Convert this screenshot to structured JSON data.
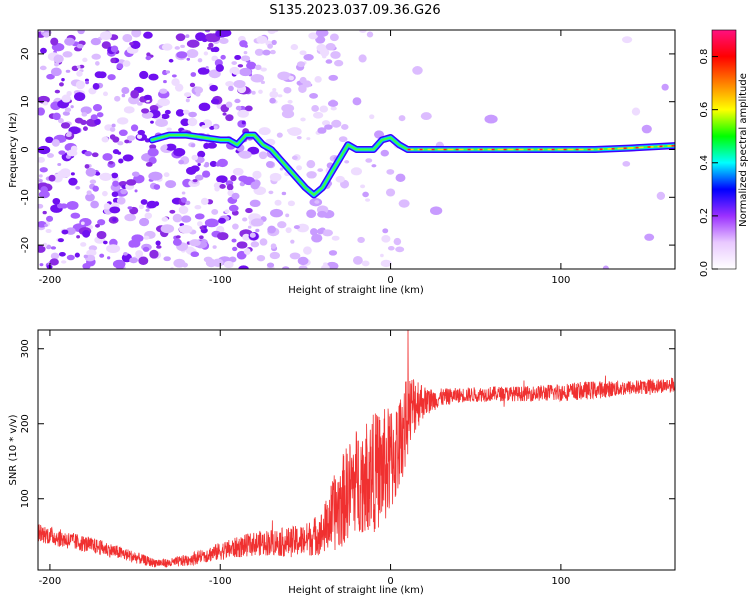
{
  "title": "S135.2023.037.09.36.G26",
  "chart_data": [
    {
      "type": "heatmap",
      "xlabel": "Height of straight line (km)",
      "ylabel": "Frequency (Hz)",
      "xlim": [
        -207,
        167
      ],
      "ylim": [
        -25,
        25
      ],
      "xticks": [
        -200,
        -100,
        0,
        100
      ],
      "yticks": [
        -20,
        -10,
        0,
        10,
        20
      ],
      "colorbar": {
        "label": "Normalized spectral amplitude",
        "range": [
          0.0,
          0.9
        ],
        "ticks": [
          0.0,
          0.2,
          0.4,
          0.6,
          0.8
        ],
        "colors": [
          "#ffffff",
          "#e9c9ff",
          "#9b30ff",
          "#0000ff",
          "#00ffff",
          "#00ff00",
          "#ffff00",
          "#ff8000",
          "#ff0000",
          "#ff1080"
        ]
      },
      "ridge": {
        "x": [
          -140,
          -130,
          -120,
          -110,
          -100,
          -95,
          -90,
          -85,
          -80,
          -75,
          -70,
          -65,
          -60,
          -55,
          -50,
          -45,
          -40,
          -35,
          -30,
          -25,
          -20,
          -15,
          -10,
          -5,
          0,
          5,
          10,
          20,
          40,
          60,
          80,
          100,
          120,
          140,
          167
        ],
        "y": [
          2,
          3,
          3,
          2.5,
          2,
          2,
          1,
          3,
          3,
          1,
          0,
          -2,
          -4,
          -6,
          -8,
          -9.5,
          -8,
          -5,
          -2,
          1,
          0,
          0,
          0,
          2,
          2.5,
          1,
          0,
          0,
          0,
          0,
          0,
          0,
          0,
          0.3,
          0.8
        ]
      }
    },
    {
      "type": "line",
      "xlabel": "Height of straight line (km)",
      "ylabel": "SNR (10 * v/v)",
      "xlim": [
        -207,
        167
      ],
      "ylim": [
        5,
        325
      ],
      "xticks": [
        -200,
        -100,
        0,
        100
      ],
      "yticks": [
        100,
        200,
        300
      ],
      "series": [
        {
          "color": "#f03030",
          "x": [
            -207,
            -190,
            -170,
            -150,
            -140,
            -130,
            -120,
            -110,
            -100,
            -90,
            -80,
            -70,
            -60,
            -50,
            -40,
            -35,
            -30,
            -25,
            -20,
            -15,
            -10,
            -5,
            0,
            5,
            10,
            15,
            20,
            25,
            30,
            40,
            60,
            80,
            100,
            120,
            140,
            167
          ],
          "values": [
            55,
            45,
            35,
            22,
            15,
            14,
            18,
            24,
            30,
            35,
            40,
            42,
            42,
            45,
            55,
            75,
            90,
            110,
            125,
            130,
            135,
            140,
            150,
            170,
            210,
            230,
            230,
            232,
            235,
            238,
            240,
            240,
            242,
            245,
            248,
            252
          ],
          "noise": [
            12,
            12,
            10,
            8,
            6,
            6,
            8,
            10,
            12,
            14,
            16,
            18,
            20,
            22,
            30,
            45,
            60,
            65,
            70,
            75,
            80,
            80,
            75,
            65,
            55,
            40,
            20,
            15,
            12,
            10,
            10,
            10,
            12,
            12,
            10,
            10
          ]
        }
      ]
    }
  ]
}
